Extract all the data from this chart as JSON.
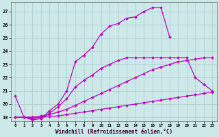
{
  "background_color": "#cce8e8",
  "grid_color": "#aacccc",
  "line_color": "#bb00bb",
  "xlabel": "Windchill (Refroidissement éolien,°C)",
  "xlim": [
    -0.5,
    23.5
  ],
  "ylim": [
    18.7,
    27.7
  ],
  "yticks": [
    19,
    20,
    21,
    22,
    23,
    24,
    25,
    26,
    27
  ],
  "xticks": [
    0,
    1,
    2,
    3,
    4,
    5,
    6,
    7,
    8,
    9,
    10,
    11,
    12,
    13,
    14,
    15,
    16,
    17,
    18,
    19,
    20,
    21,
    22,
    23
  ],
  "lines": [
    {
      "x": [
        0,
        1,
        2,
        3,
        4,
        5,
        6,
        7,
        8,
        9,
        10,
        11,
        12,
        13,
        14,
        15,
        16,
        17,
        18
      ],
      "y": [
        20.6,
        19.0,
        18.8,
        18.9,
        19.5,
        20.0,
        21.0,
        23.2,
        23.7,
        24.3,
        25.3,
        25.9,
        26.1,
        26.5,
        26.6,
        27.0,
        27.3,
        27.3,
        25.1
      ]
    },
    {
      "x": [
        1,
        2,
        3,
        4,
        5,
        6,
        7,
        8,
        9,
        10,
        11,
        12,
        13,
        14,
        15,
        16,
        17,
        18,
        19,
        20,
        21,
        22,
        23
      ],
      "y": [
        19.0,
        18.9,
        18.9,
        19.3,
        19.8,
        20.4,
        21.3,
        21.8,
        22.2,
        22.7,
        23.0,
        23.3,
        23.5,
        23.5,
        23.5,
        23.5,
        23.5,
        23.5,
        23.5,
        23.5,
        22.0,
        21.5,
        21.0
      ]
    },
    {
      "x": [
        0,
        1,
        2,
        3,
        4,
        5,
        6,
        7,
        8,
        9,
        10,
        11,
        12,
        13,
        14,
        15,
        16,
        17,
        18,
        19,
        20,
        21,
        22,
        23
      ],
      "y": [
        19.0,
        19.0,
        19.0,
        19.1,
        19.2,
        19.4,
        19.6,
        19.9,
        20.2,
        20.5,
        20.8,
        21.1,
        21.4,
        21.7,
        22.0,
        22.3,
        22.6,
        22.8,
        23.0,
        23.2,
        23.3,
        23.4,
        23.5,
        23.5
      ]
    },
    {
      "x": [
        0,
        1,
        2,
        3,
        4,
        5,
        6,
        7,
        8,
        9,
        10,
        11,
        12,
        13,
        14,
        15,
        16,
        17,
        18,
        19,
        20,
        21,
        22,
        23
      ],
      "y": [
        19.0,
        19.0,
        19.0,
        19.0,
        19.05,
        19.1,
        19.2,
        19.3,
        19.4,
        19.5,
        19.6,
        19.7,
        19.8,
        19.9,
        20.0,
        20.1,
        20.2,
        20.3,
        20.4,
        20.5,
        20.6,
        20.7,
        20.8,
        20.9
      ]
    }
  ],
  "marker": "D",
  "markersize": 2.0,
  "linewidth": 0.9
}
